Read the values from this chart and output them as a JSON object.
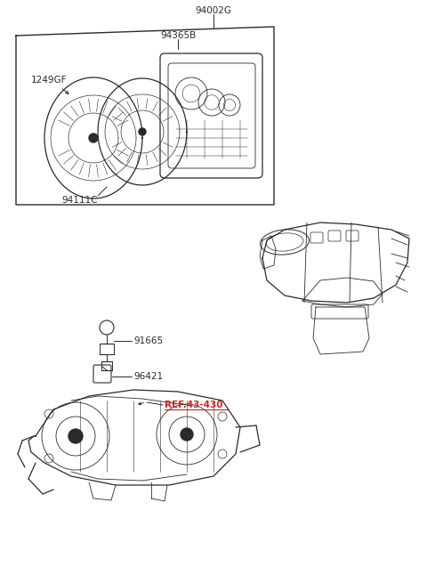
{
  "bg_color": "#ffffff",
  "line_color": "#2a2a2a",
  "label_color": "#333333",
  "ref_label_color": "#cc2222",
  "fig_width": 4.8,
  "fig_height": 6.55,
  "dpi": 100,
  "label_94002G": "94002G",
  "label_94365B": "94365B",
  "label_1249GF": "1249GF",
  "label_94111C": "94111C",
  "label_91665": "91665",
  "label_96421": "96421",
  "label_ref": "REF.43-430"
}
